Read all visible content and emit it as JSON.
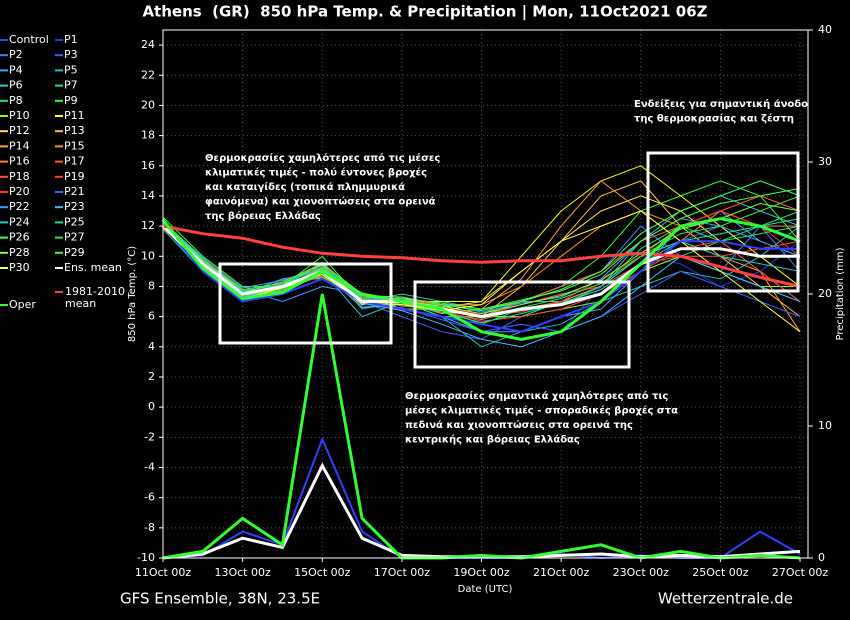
{
  "chart_data": {
    "type": "line",
    "title": "Athens  (GR)  850 hPa Temp. & Precipitation | Mon, 11Oct2021 06Z",
    "xlabel": "Date (UTC)",
    "ylabel": "850 hPa Temp. (°C)",
    "y2label": "Precipitation (mm)",
    "footer_left": "GFS Ensemble, 38N, 23.5E",
    "footer_right": "Wetterzentrale.de",
    "x": [
      0,
      1,
      2,
      3,
      4,
      5,
      6,
      7,
      8,
      9,
      10,
      11,
      12,
      13,
      14,
      15,
      16
    ],
    "xlim": [
      0,
      16.2
    ],
    "xticks": [
      {
        "value": 0,
        "label": "11Oct 00z"
      },
      {
        "value": 2,
        "label": "13Oct 00z"
      },
      {
        "value": 4,
        "label": "15Oct 00z"
      },
      {
        "value": 6,
        "label": "17Oct 00z"
      },
      {
        "value": 8,
        "label": "19Oct 00z"
      },
      {
        "value": 10,
        "label": "21Oct 00z"
      },
      {
        "value": 12,
        "label": "23Oct 00z"
      },
      {
        "value": 14,
        "label": "25Oct 00z"
      },
      {
        "value": 16,
        "label": "27Oct 00z"
      }
    ],
    "ylim": [
      -10,
      25
    ],
    "yticks": [
      -10,
      -8,
      -6,
      -4,
      -2,
      0,
      2,
      4,
      6,
      8,
      10,
      12,
      14,
      16,
      18,
      20,
      22,
      24
    ],
    "y2lim": [
      0,
      40
    ],
    "y2ticks": [
      0,
      10,
      20,
      30,
      40
    ],
    "grid": true,
    "series": [
      {
        "name": "Control",
        "color": "#3040ff",
        "values": [
          12.2,
          9,
          7,
          7.5,
          8.5,
          7,
          6.5,
          6,
          5.5,
          5,
          6,
          7,
          9,
          11,
          11,
          10.5,
          10.5
        ]
      },
      {
        "name": "P1",
        "color": "#2040e0",
        "values": [
          12,
          9.5,
          7.5,
          8,
          9,
          7.5,
          7,
          6,
          5,
          5.5,
          5,
          8,
          10,
          9.5,
          8,
          9,
          11
        ]
      },
      {
        "name": "P2",
        "color": "#4080ff",
        "values": [
          12.5,
          9,
          8,
          7.5,
          9.5,
          6.5,
          7,
          6.5,
          6,
          7,
          8,
          9,
          12,
          10,
          9,
          12,
          9
        ]
      },
      {
        "name": "P3",
        "color": "#4060ff",
        "values": [
          12,
          10,
          7,
          8.5,
          9,
          7,
          6,
          5,
          4.5,
          6,
          7,
          8,
          10,
          11,
          12,
          10,
          8
        ]
      },
      {
        "name": "P4",
        "color": "#40a0ff",
        "values": [
          12.3,
          9.8,
          7.8,
          7,
          8,
          7.5,
          6.5,
          6,
          5,
          5,
          6,
          6.5,
          9,
          12,
          13,
          11,
          10
        ]
      },
      {
        "name": "P5",
        "color": "#20c0c0",
        "values": [
          11.8,
          9,
          7,
          8,
          9,
          6,
          7,
          6,
          4,
          5,
          5.5,
          7,
          8,
          9,
          8.5,
          10,
          12
        ]
      },
      {
        "name": "P6",
        "color": "#40c0c0",
        "values": [
          12,
          9.5,
          7.5,
          8.5,
          8.5,
          7,
          7.5,
          7,
          6.5,
          7,
          7,
          8,
          11,
          13,
          14,
          13,
          12
        ]
      },
      {
        "name": "P7",
        "color": "#20e080",
        "values": [
          12.4,
          9.2,
          7.6,
          8,
          9,
          7.2,
          6.8,
          6.8,
          6,
          6,
          7,
          8,
          10.5,
          12,
          11,
          12,
          13
        ]
      },
      {
        "name": "P8",
        "color": "#30e060",
        "values": [
          12.1,
          9.6,
          7.2,
          7.8,
          9.2,
          7,
          7,
          6.5,
          5.5,
          6.5,
          7,
          7.5,
          9,
          10,
          11,
          11.5,
          12
        ]
      },
      {
        "name": "P9",
        "color": "#30ff30",
        "values": [
          12.6,
          10,
          8,
          8,
          10,
          7,
          7,
          6,
          6,
          7,
          8,
          10,
          13,
          14,
          15,
          14,
          11
        ]
      },
      {
        "name": "P10",
        "color": "#80ff00",
        "values": [
          12.2,
          9,
          7.5,
          8,
          9.5,
          7.5,
          6.5,
          6.5,
          6,
          6,
          6.5,
          7,
          9,
          10,
          9,
          8,
          8
        ]
      },
      {
        "name": "P11",
        "color": "#ffff00",
        "values": [
          11.9,
          9.5,
          7,
          8,
          9,
          7,
          7,
          7,
          7,
          10,
          13,
          15,
          16,
          14,
          12,
          10,
          8
        ]
      },
      {
        "name": "P12",
        "color": "#ffe060",
        "values": [
          12,
          9.3,
          7.4,
          8.2,
          8.8,
          6.8,
          7.2,
          6.6,
          7,
          9,
          11,
          13,
          14,
          13,
          11,
          9,
          7
        ]
      },
      {
        "name": "P13",
        "color": "#ffc040",
        "values": [
          12.2,
          9.7,
          7.7,
          7.9,
          9.1,
          7.1,
          6.9,
          6.4,
          6,
          8,
          11,
          14,
          15,
          12,
          10,
          8,
          6
        ]
      },
      {
        "name": "P14",
        "color": "#ffa040",
        "values": [
          12.4,
          9.1,
          7.3,
          8.1,
          8.6,
          7.3,
          7,
          6.2,
          6.5,
          8.5,
          12,
          15,
          13,
          11,
          10,
          9,
          5
        ]
      },
      {
        "name": "P15",
        "color": "#ff9020",
        "values": [
          12,
          9.4,
          7.5,
          7.7,
          9.3,
          7,
          7.1,
          6.8,
          6.8,
          8,
          10,
          12,
          13,
          12,
          13,
          12,
          11
        ]
      },
      {
        "name": "P16",
        "color": "#ff8040",
        "values": [
          12.3,
          9.6,
          7.6,
          8,
          9,
          7.2,
          6.8,
          6.3,
          5.8,
          6.5,
          7,
          8,
          10,
          11,
          13,
          12,
          12
        ]
      },
      {
        "name": "P17",
        "color": "#ff6020",
        "values": [
          12.1,
          9.2,
          7.2,
          8.3,
          9.4,
          6.9,
          7.3,
          6.6,
          6.2,
          7,
          8,
          9,
          11,
          12,
          13,
          14,
          13
        ]
      },
      {
        "name": "P18",
        "color": "#ff5030",
        "values": [
          11.8,
          9.8,
          7.8,
          7.8,
          8.7,
          7.4,
          6.7,
          6.5,
          6,
          6.8,
          7.5,
          8,
          9.5,
          10,
          10,
          10.5,
          11
        ]
      },
      {
        "name": "P19",
        "color": "#ff4040",
        "values": [
          12.5,
          9.3,
          7.4,
          8,
          9.1,
          7,
          7,
          6.4,
          5.7,
          6,
          6.5,
          7.5,
          9,
          10.5,
          11,
          9,
          7
        ]
      },
      {
        "name": "P20",
        "color": "#ff3030",
        "values": [
          12.2,
          9.5,
          7.5,
          8.2,
          9.6,
          7.3,
          6.9,
          6.7,
          6.1,
          6.3,
          7,
          8.5,
          10,
          12,
          13,
          12,
          10
        ]
      },
      {
        "name": "P21",
        "color": "#4060ff",
        "values": [
          12,
          9,
          7.1,
          7.6,
          8.9,
          6.7,
          6.6,
          5.8,
          5,
          5.5,
          5,
          6,
          7.5,
          9,
          8,
          7,
          6
        ]
      },
      {
        "name": "P22",
        "color": "#40a0ff",
        "values": [
          12.3,
          9.9,
          7.9,
          8.4,
          9.2,
          7.1,
          7.2,
          6.9,
          6.3,
          6.9,
          7.3,
          8.5,
          11,
          12.5,
          12,
          11,
          10
        ]
      },
      {
        "name": "P23",
        "color": "#40c0ff",
        "values": [
          12.1,
          9.4,
          7.3,
          7.9,
          8.8,
          6.9,
          6.4,
          5.5,
          4.5,
          4,
          5,
          6,
          8,
          10,
          9,
          8,
          7
        ]
      },
      {
        "name": "P24",
        "color": "#20d0c0",
        "values": [
          12.4,
          9.6,
          7.7,
          8.1,
          9.3,
          7.2,
          7.1,
          6.6,
          5.9,
          6.4,
          6.8,
          8,
          10,
          11,
          10,
          9.5,
          9
        ]
      },
      {
        "name": "P25",
        "color": "#20e0a0",
        "values": [
          12,
          9.1,
          7,
          7.8,
          9,
          6.6,
          6.8,
          6.3,
          5.6,
          6.2,
          6.9,
          7.8,
          9.5,
          11,
          11.5,
          12,
          12.5
        ]
      },
      {
        "name": "P26",
        "color": "#40ff60",
        "values": [
          12.2,
          9.8,
          7.6,
          8.3,
          9.5,
          7.4,
          7.3,
          6.8,
          6.4,
          7,
          7.8,
          9,
          11.5,
          13,
          14,
          15,
          14
        ]
      },
      {
        "name": "P27",
        "color": "#40e040",
        "values": [
          12.5,
          9.2,
          7.4,
          7.9,
          8.7,
          7,
          6.9,
          6.5,
          6,
          6.6,
          7.2,
          8.2,
          10,
          11.5,
          12,
          13,
          14
        ]
      },
      {
        "name": "P28",
        "color": "#80ff40",
        "values": [
          11.9,
          9.5,
          7.5,
          8,
          9.2,
          7.1,
          7,
          6.7,
          6.2,
          6.8,
          7.4,
          8.4,
          10.2,
          11.8,
          12.5,
          13.5,
          13
        ]
      },
      {
        "name": "P29",
        "color": "#40ff40",
        "values": [
          12.3,
          9.7,
          7.8,
          8.2,
          9.4,
          7.3,
          7.2,
          6.9,
          6.5,
          7.1,
          7.7,
          8.8,
          11,
          12.5,
          13.5,
          14,
          14.5
        ]
      },
      {
        "name": "P30",
        "color": "#ffff40",
        "values": [
          12.1,
          9.3,
          7.2,
          7.9,
          8.8,
          6.9,
          6.8,
          6.4,
          6.8,
          9,
          11,
          12,
          13,
          11,
          9,
          7,
          5
        ]
      },
      {
        "name": "Ens. mean",
        "color": "#ffffff",
        "values": [
          12,
          9.5,
          7.5,
          8,
          9,
          7,
          7,
          6.5,
          6,
          6.5,
          6.8,
          7.5,
          9.5,
          10.5,
          10.5,
          10,
          10
        ]
      },
      {
        "name": "1981-2010 mean",
        "color": "#ff4040",
        "values": [
          12,
          11.5,
          11.2,
          10.6,
          10.2,
          10,
          9.9,
          9.7,
          9.6,
          9.7,
          9.7,
          10,
          10.2,
          10,
          9.3,
          8.6,
          8
        ]
      },
      {
        "name": "Oper",
        "color": "#30ff30",
        "values": [
          12.4,
          9.2,
          7.2,
          7.6,
          9,
          7.5,
          7,
          6.5,
          5,
          4.5,
          5,
          7,
          9.5,
          12,
          12.5,
          12,
          11
        ]
      }
    ],
    "precipitation": [
      {
        "name": "Control",
        "color": "#3040ff",
        "axis": "y2",
        "values": [
          0,
          0.2,
          2,
          1,
          9,
          2,
          0,
          0,
          0,
          0,
          0.3,
          0,
          0.2,
          0,
          0,
          2,
          0.3
        ]
      },
      {
        "name": "Ens. mean",
        "color": "#ffffff",
        "axis": "y2",
        "values": [
          0,
          0.3,
          1.5,
          0.8,
          7,
          1.5,
          0.2,
          0.1,
          0.1,
          0.1,
          0.2,
          0.3,
          0.1,
          0.2,
          0.1,
          0.3,
          0.5
        ]
      },
      {
        "name": "Oper",
        "color": "#30ff30",
        "axis": "y2",
        "values": [
          0,
          0.5,
          3,
          1,
          20,
          3,
          0,
          0,
          0.2,
          0,
          0.5,
          1,
          0,
          0.5,
          0,
          0.2,
          0
        ]
      }
    ],
    "annotations": [
      [
        "Θερμοκρασίες χαμηλότερες από τις μέσες",
        "κλιματικές τιμές - πολύ έντονες βροχές",
        "και καταιγίδες (τοπικά πλημμυρικά",
        "φαινόμενα) και χιονοπτώσεις στα ορεινά",
        "της βόρειας Ελλάδας"
      ],
      [
        "Θερμοκρασίες σημαντικά χαμηλότερες από τις",
        "μέσες κλιματικές τιμές - σποραδικές βροχές στα",
        "πεδινά και χιονοπτώσεις στα ορεινά της",
        "κεντρικής και βόρειας Ελλάδας"
      ],
      [
        "Ενδείξεις για σημαντική άνοδο",
        "της θερμοκρασίας και ζέστη"
      ]
    ]
  }
}
